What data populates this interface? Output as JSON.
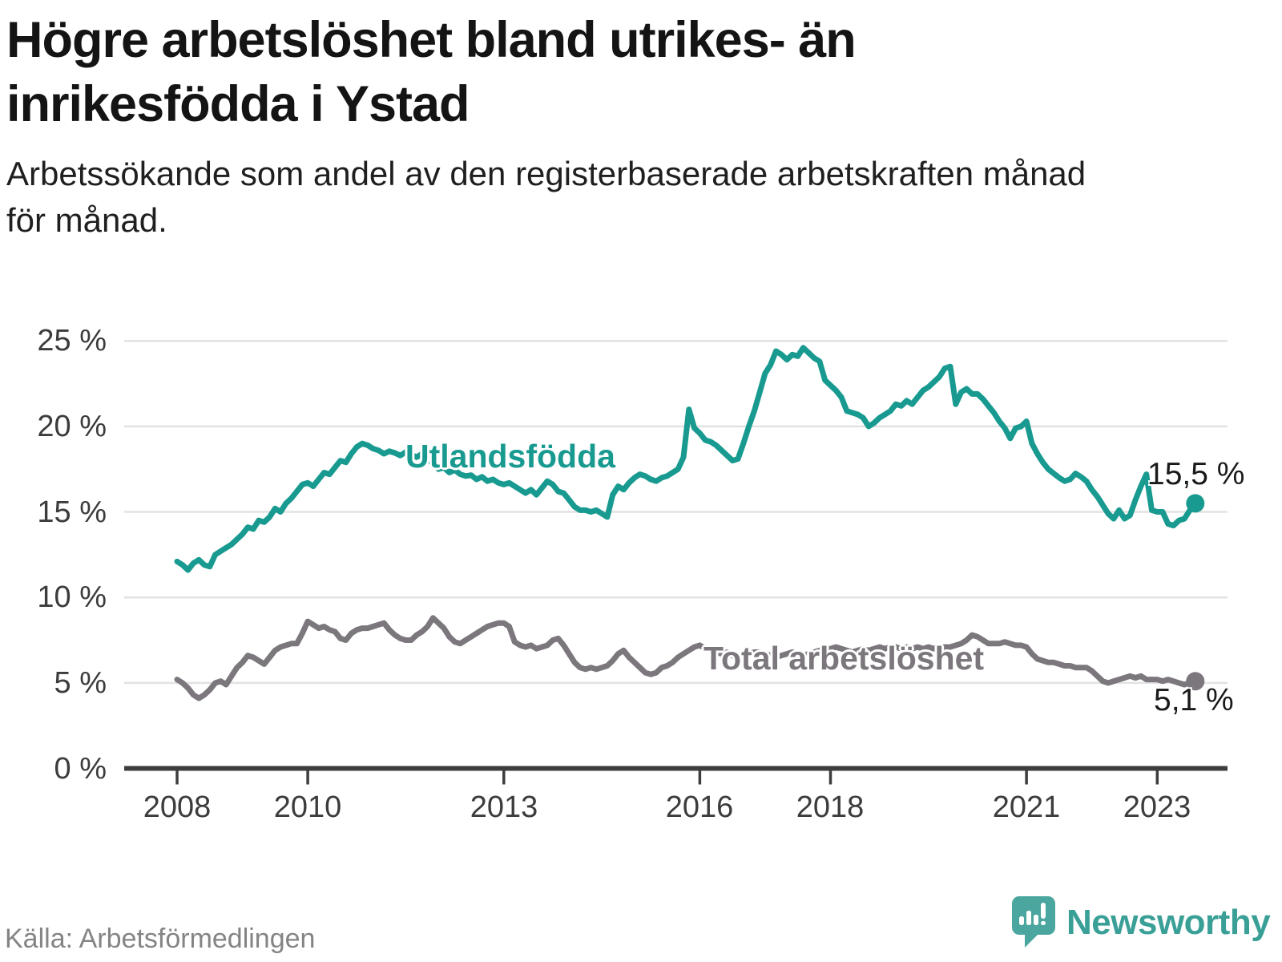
{
  "title": {
    "full": "Högre arbetslöshet bland utrikes- än inrikesfödda i Ystad",
    "lines": [
      "Högre arbetslöshet bland utrikes- än",
      "inrikesfödda i Ystad"
    ]
  },
  "subtitle": {
    "full": "Arbetssökande som andel av den registerbaserade arbetskraften månad för månad.",
    "lines": [
      "Arbetssökande som andel av den registerbaserade arbetskraften månad",
      "för månad."
    ]
  },
  "source": "Källa: Arbetsförmedlingen",
  "brand": {
    "name": "Newsworthy",
    "bubble_color": "#4aa69e",
    "text_color": "#3aa097"
  },
  "colors": {
    "foreign_born_line": "#189a90",
    "total_line": "#7b777d",
    "grid": "#e2e2e2",
    "axis": "#3d3d3d",
    "tick_text": "#3c3c3c"
  },
  "chart_data": {
    "type": "line",
    "title": "Arbetssökande som andel av den registerbaserade arbetskraften månad för månad",
    "frequency": "monthly",
    "x_start": "2008-01",
    "x_end": "2023-08",
    "x_tick_years": [
      2008,
      2010,
      2013,
      2016,
      2018,
      2021,
      2023
    ],
    "y_tick_labels": [
      "0 %",
      "5 %",
      "10 %",
      "15 %",
      "20 %",
      "25 %"
    ],
    "ylim": [
      0,
      25
    ],
    "grid": "horizontal",
    "legend": "inline-labels",
    "series": [
      {
        "name": "Utlandsfödda",
        "color": "#189a90",
        "end_label": "15,5 %",
        "end_value": 15.5,
        "values": [
          12.1,
          11.9,
          11.6,
          12.0,
          12.2,
          11.9,
          11.8,
          12.5,
          12.7,
          12.9,
          13.1,
          13.4,
          13.7,
          14.1,
          14.0,
          14.5,
          14.4,
          14.7,
          15.2,
          15.0,
          15.5,
          15.8,
          16.2,
          16.6,
          16.7,
          16.5,
          16.9,
          17.3,
          17.2,
          17.6,
          18.0,
          17.9,
          18.4,
          18.8,
          19.0,
          18.9,
          18.7,
          18.6,
          18.4,
          18.55,
          18.45,
          18.3,
          18.5,
          18.35,
          18.2,
          18.4,
          18.1,
          17.8,
          17.5,
          17.6,
          17.3,
          17.45,
          17.2,
          17.1,
          17.15,
          16.9,
          17.05,
          16.8,
          16.9,
          16.7,
          16.6,
          16.7,
          16.5,
          16.3,
          16.1,
          16.3,
          16.0,
          16.4,
          16.8,
          16.6,
          16.2,
          16.1,
          15.7,
          15.3,
          15.1,
          15.1,
          15.0,
          15.1,
          14.9,
          14.7,
          16.0,
          16.5,
          16.3,
          16.7,
          17.0,
          17.2,
          17.1,
          16.9,
          16.8,
          17.0,
          17.1,
          17.3,
          17.5,
          18.2,
          21.0,
          19.9,
          19.6,
          19.2,
          19.1,
          18.9,
          18.6,
          18.3,
          18.0,
          18.1,
          19.0,
          20.0,
          20.9,
          22.0,
          23.1,
          23.6,
          24.4,
          24.2,
          23.9,
          24.2,
          24.1,
          24.6,
          24.3,
          24.0,
          23.8,
          22.7,
          22.4,
          22.1,
          21.7,
          20.9,
          20.8,
          20.7,
          20.5,
          20.0,
          20.2,
          20.5,
          20.7,
          20.9,
          21.3,
          21.2,
          21.5,
          21.3,
          21.7,
          22.1,
          22.3,
          22.6,
          22.9,
          23.4,
          23.5,
          21.3,
          22.0,
          22.2,
          21.9,
          21.9,
          21.6,
          21.2,
          20.8,
          20.3,
          19.9,
          19.3,
          19.9,
          20.0,
          20.3,
          19.0,
          18.4,
          17.9,
          17.5,
          17.25,
          17.0,
          16.8,
          16.9,
          17.25,
          17.05,
          16.8,
          16.3,
          15.9,
          15.4,
          14.9,
          14.6,
          15.1,
          14.6,
          14.8,
          15.7,
          16.5,
          17.2,
          15.1,
          15.0,
          15.0,
          14.3,
          14.2,
          14.5,
          14.6,
          15.1,
          15.5
        ]
      },
      {
        "name": "Total arbetslöshet",
        "color": "#7b777d",
        "end_label": "5,1 %",
        "end_value": 5.1,
        "values": [
          5.2,
          5.0,
          4.7,
          4.3,
          4.1,
          4.3,
          4.6,
          5.0,
          5.1,
          4.9,
          5.4,
          5.9,
          6.2,
          6.6,
          6.5,
          6.3,
          6.1,
          6.5,
          6.9,
          7.1,
          7.2,
          7.3,
          7.3,
          7.9,
          8.6,
          8.4,
          8.2,
          8.3,
          8.1,
          8.0,
          7.6,
          7.5,
          7.9,
          8.1,
          8.2,
          8.2,
          8.3,
          8.4,
          8.5,
          8.1,
          7.8,
          7.6,
          7.5,
          7.5,
          7.8,
          8.0,
          8.3,
          8.8,
          8.5,
          8.2,
          7.7,
          7.4,
          7.3,
          7.5,
          7.7,
          7.9,
          8.1,
          8.3,
          8.4,
          8.5,
          8.5,
          8.3,
          7.4,
          7.2,
          7.1,
          7.2,
          7.0,
          7.1,
          7.2,
          7.5,
          7.6,
          7.2,
          6.7,
          6.2,
          5.9,
          5.8,
          5.9,
          5.8,
          5.9,
          6.0,
          6.3,
          6.7,
          6.9,
          6.5,
          6.2,
          5.9,
          5.6,
          5.5,
          5.6,
          5.9,
          6.0,
          6.2,
          6.5,
          6.7,
          6.9,
          7.1,
          7.2,
          7.0,
          6.9,
          6.8,
          6.7,
          6.8,
          6.6,
          6.5,
          6.6,
          6.7,
          6.8,
          6.8,
          6.7,
          6.6,
          6.5,
          6.6,
          6.7,
          6.8,
          6.7,
          6.6,
          6.7,
          6.8,
          6.9,
          7.0,
          7.0,
          7.1,
          7.0,
          6.9,
          6.8,
          6.9,
          7.0,
          6.9,
          7.0,
          7.1,
          7.0,
          7.1,
          7.1,
          7.0,
          7.1,
          7.0,
          7.1,
          7.0,
          7.1,
          7.0,
          7.1,
          7.1,
          7.1,
          7.2,
          7.3,
          7.5,
          7.8,
          7.7,
          7.5,
          7.3,
          7.3,
          7.3,
          7.4,
          7.3,
          7.2,
          7.2,
          7.1,
          6.7,
          6.4,
          6.3,
          6.2,
          6.2,
          6.1,
          6.0,
          6.0,
          5.9,
          5.9,
          5.9,
          5.7,
          5.4,
          5.1,
          5.0,
          5.1,
          5.2,
          5.3,
          5.4,
          5.3,
          5.4,
          5.2,
          5.2,
          5.2,
          5.1,
          5.2,
          5.1,
          5.0,
          4.9,
          5.0,
          5.1
        ]
      }
    ]
  }
}
